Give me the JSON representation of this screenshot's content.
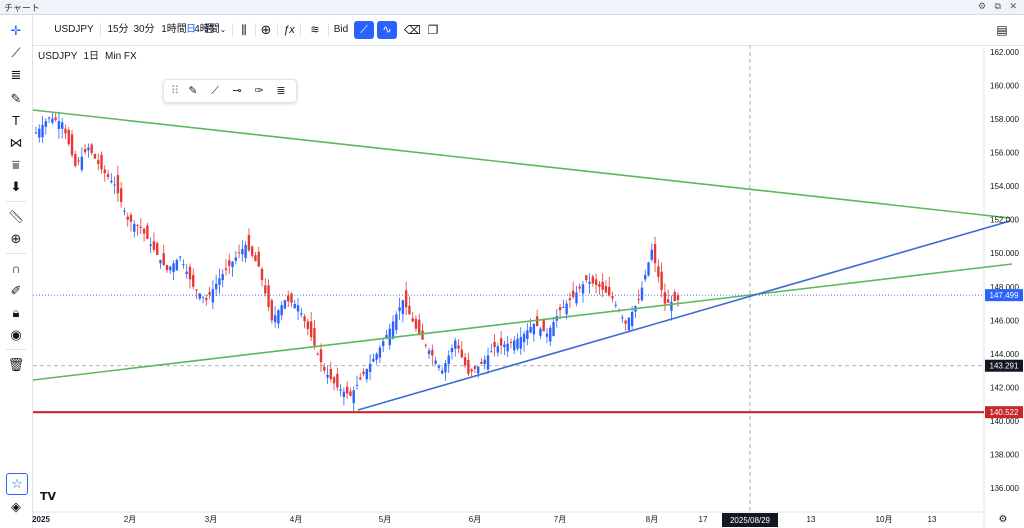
{
  "window": {
    "title": "チャート",
    "controls": "⚙ ⧉ ✕"
  },
  "toolbar": {
    "symbol": "USDJPY",
    "intervals": [
      "15分",
      "30分",
      "1時間",
      "4時間",
      "日",
      "週"
    ],
    "active_interval": "日",
    "price_type": "Bid"
  },
  "legend": {
    "symbol": "USDJPY",
    "interval": "1日",
    "source": "Min FX"
  },
  "y_axis": {
    "ticks": [
      "162.000",
      "160.000",
      "158.000",
      "156.000",
      "154.000",
      "152.000",
      "150.000",
      "148.000",
      "146.000",
      "144.000",
      "142.000",
      "140.000",
      "138.000",
      "136.000"
    ],
    "tick_values": [
      162,
      160,
      158,
      156,
      154,
      152,
      150,
      148,
      146,
      144,
      142,
      140,
      138,
      136
    ],
    "range": [
      135,
      163
    ],
    "current_price": {
      "label": "147.499",
      "value": 147.499,
      "color": "#2962ff"
    },
    "crosshair_price": {
      "label": "143.291",
      "value": 143.291,
      "color": "#131722"
    },
    "support_price": {
      "label": "140.522",
      "value": 140.522,
      "color": "#c62828"
    }
  },
  "x_axis": {
    "ticks": [
      {
        "label": "2025",
        "bold": true
      },
      {
        "label": "2月"
      },
      {
        "label": "3月"
      },
      {
        "label": "4月"
      },
      {
        "label": "5月"
      },
      {
        "label": "6月"
      },
      {
        "label": "7月"
      },
      {
        "label": "8月"
      },
      {
        "label": "17"
      },
      {
        "label": "13"
      },
      {
        "label": "10月"
      },
      {
        "label": "13"
      }
    ],
    "crosshair_date": "2025/08/29"
  },
  "chart_data": {
    "type": "candlestick",
    "series": [
      {
        "name": "USDJPY",
        "close_points": [
          [
            0,
            157.2
          ],
          [
            4,
            158.1
          ],
          [
            8,
            157.8
          ],
          [
            12,
            155.2
          ],
          [
            16,
            156.3
          ],
          [
            20,
            155.0
          ],
          [
            24,
            154.1
          ],
          [
            28,
            152.0
          ],
          [
            32,
            151.5
          ],
          [
            36,
            150.2
          ],
          [
            40,
            149.0
          ],
          [
            44,
            149.8
          ],
          [
            48,
            148.0
          ],
          [
            52,
            147.2
          ],
          [
            56,
            148.5
          ],
          [
            60,
            149.5
          ],
          [
            64,
            150.5
          ],
          [
            68,
            149.2
          ],
          [
            72,
            146.0
          ],
          [
            76,
            147.2
          ],
          [
            80,
            146.9
          ],
          [
            84,
            145.0
          ],
          [
            88,
            143.0
          ],
          [
            92,
            142.0
          ],
          [
            96,
            141.5
          ],
          [
            100,
            142.8
          ],
          [
            104,
            144.0
          ],
          [
            108,
            145.5
          ],
          [
            112,
            147.2
          ],
          [
            116,
            145.5
          ],
          [
            120,
            144.2
          ],
          [
            124,
            143.0
          ],
          [
            128,
            144.8
          ],
          [
            132,
            142.8
          ],
          [
            136,
            143.4
          ],
          [
            140,
            144.4
          ],
          [
            144,
            144.6
          ],
          [
            148,
            145.0
          ],
          [
            152,
            145.8
          ],
          [
            156,
            145.2
          ],
          [
            160,
            146.6
          ],
          [
            164,
            147.4
          ],
          [
            168,
            148.4
          ],
          [
            172,
            148.0
          ],
          [
            176,
            147.3
          ],
          [
            180,
            145.8
          ],
          [
            184,
            147.2
          ],
          [
            188,
            150.2
          ],
          [
            192,
            147.0
          ],
          [
            196,
            147.2
          ]
        ]
      }
    ],
    "trendlines": [
      {
        "name": "upper-resistance",
        "color": "#5cb85c"
      },
      {
        "name": "lower-support-green",
        "color": "#5cb85c"
      },
      {
        "name": "rising-support",
        "color": "#3a6ad4"
      },
      {
        "name": "horizontal-support",
        "color": "#c62828"
      }
    ]
  }
}
